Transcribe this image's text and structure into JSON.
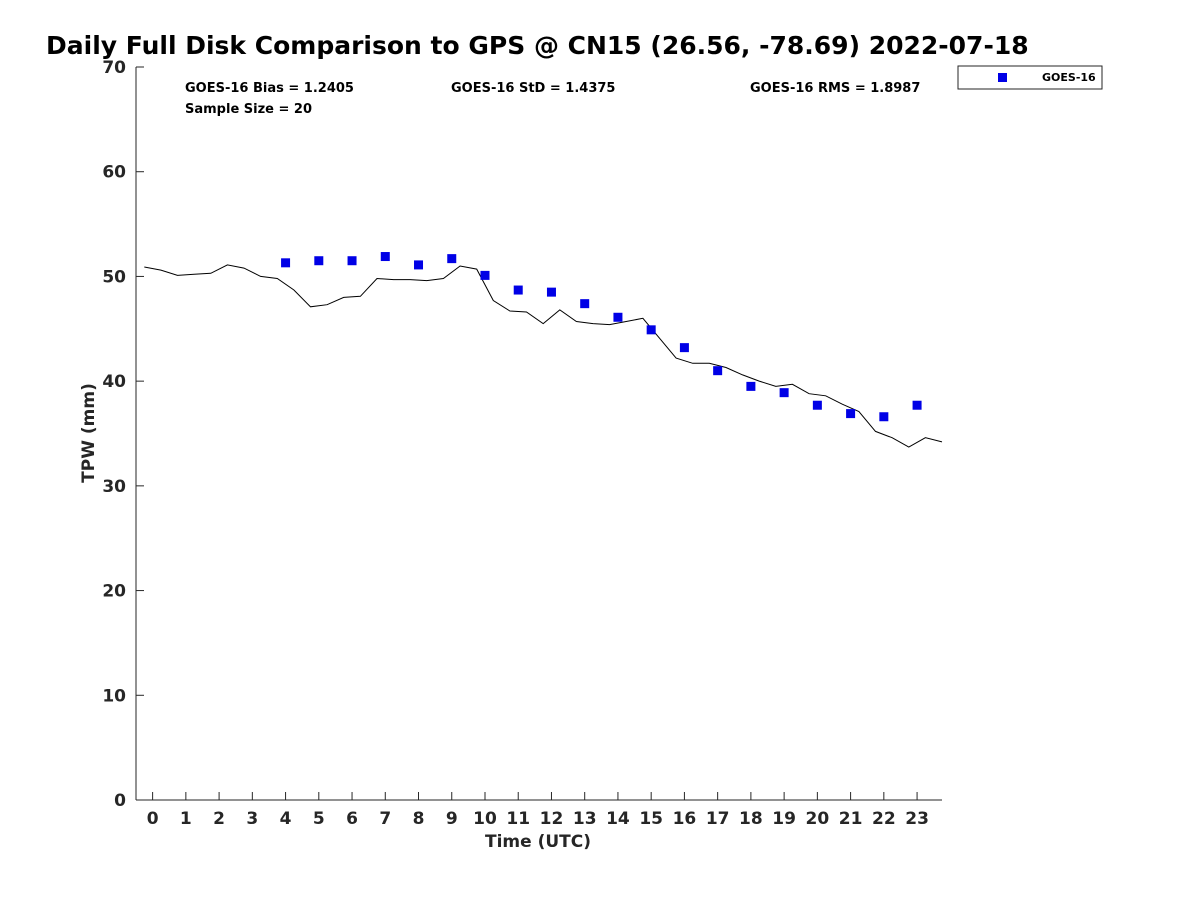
{
  "chart_data": {
    "type": "scatter",
    "title": "Daily Full Disk Comparison to GPS @ CN15 (26.56, -78.69) 2022-07-18",
    "xlabel": "Time (UTC)",
    "ylabel": "TPW (mm)",
    "xlim": [
      -0.5,
      23.75
    ],
    "ylim": [
      0,
      70
    ],
    "x_ticks": [
      0,
      1,
      2,
      3,
      4,
      5,
      6,
      7,
      8,
      9,
      10,
      11,
      12,
      13,
      14,
      15,
      16,
      17,
      18,
      19,
      20,
      21,
      22,
      23
    ],
    "x_tick_labels": [
      "0",
      "1",
      "2",
      "3",
      "4",
      "5",
      "6",
      "7",
      "8",
      "9",
      "10",
      "11",
      "12",
      "13",
      "14",
      "15",
      "16",
      "17",
      "18",
      "19",
      "20",
      "21",
      "22",
      "23"
    ],
    "y_ticks": [
      0,
      10,
      20,
      30,
      40,
      50,
      60,
      70
    ],
    "y_tick_labels": [
      "0",
      "10",
      "20",
      "30",
      "40",
      "50",
      "60",
      "70"
    ],
    "grid": false,
    "legend_position": "outside-top-right",
    "stats": {
      "bias": "GOES-16 Bias = 1.2405",
      "std": "GOES-16 StD = 1.4375",
      "rms": "GOES-16 RMS = 1.8987",
      "sample": "Sample Size = 20"
    },
    "series": [
      {
        "name": "GOES-16",
        "kind": "scatter",
        "marker": "square",
        "color": "#0000e6",
        "x": [
          4.0,
          5.0,
          6.0,
          7.0,
          8.0,
          9.0,
          10.0,
          11.0,
          12.0,
          13.0,
          14.0,
          15.0,
          16.0,
          17.0,
          18.0,
          19.0,
          20.0,
          21.0,
          22.0,
          23.0
        ],
        "y": [
          51.3,
          51.5,
          51.5,
          51.9,
          51.1,
          51.7,
          50.1,
          48.7,
          48.5,
          47.4,
          46.1,
          44.9,
          43.2,
          41.0,
          39.5,
          38.9,
          37.7,
          36.9,
          36.6,
          37.7
        ]
      },
      {
        "kind": "line",
        "color": "#000000",
        "x": [
          -0.25,
          0.25,
          0.75,
          1.25,
          1.75,
          2.25,
          2.75,
          3.25,
          3.75,
          4.25,
          4.75,
          5.25,
          5.75,
          6.25,
          6.75,
          7.25,
          7.75,
          8.25,
          8.75,
          9.25,
          9.75,
          10.25,
          10.75,
          11.25,
          11.75,
          12.25,
          12.75,
          13.25,
          13.75,
          14.25,
          14.75,
          15.25,
          15.75,
          16.25,
          16.75,
          17.25,
          17.75,
          18.25,
          18.75,
          19.25,
          19.75,
          20.25,
          20.75,
          21.25,
          21.75,
          22.25,
          22.75,
          23.25,
          23.75
        ],
        "y": [
          50.9,
          50.6,
          50.1,
          50.2,
          50.3,
          51.1,
          50.8,
          50.0,
          49.8,
          48.7,
          47.1,
          47.3,
          48.0,
          48.1,
          49.8,
          49.7,
          49.7,
          49.6,
          49.8,
          51.0,
          50.7,
          47.7,
          46.7,
          46.6,
          45.5,
          46.8,
          45.7,
          45.5,
          45.4,
          45.7,
          46.0,
          44.1,
          42.2,
          41.7,
          41.7,
          41.3,
          40.6,
          40.0,
          39.5,
          39.7,
          38.8,
          38.6,
          37.8,
          37.1,
          35.2,
          34.6,
          33.7,
          34.6,
          34.2
        ]
      }
    ]
  }
}
